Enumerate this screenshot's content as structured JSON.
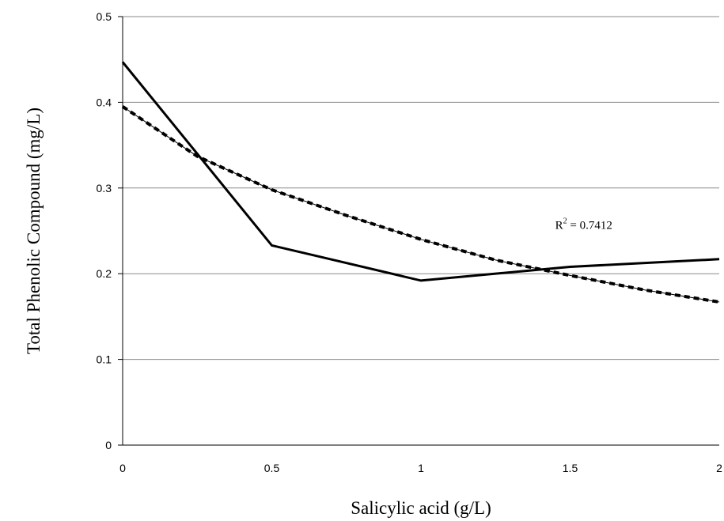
{
  "chart_data": {
    "type": "line",
    "title": "",
    "xlabel": "Salicylic acid (g/L)",
    "ylabel": "Total Phenolic Compound (mg/L)",
    "xlim": [
      0,
      2
    ],
    "ylim": [
      0,
      0.5
    ],
    "x_ticks": [
      "0",
      "0.5",
      "1",
      "1.5",
      "2"
    ],
    "y_ticks": [
      "0",
      "0.1",
      "0.2",
      "0.3",
      "0.4",
      "0.5"
    ],
    "grid": "horizontal",
    "legend": "none",
    "series": [
      {
        "style": "solid",
        "color": "#000000",
        "x": [
          0,
          0.5,
          1,
          1.5,
          2
        ],
        "y": [
          0.447,
          0.233,
          0.192,
          0.208,
          0.217
        ]
      },
      {
        "style": "dashed-trendline",
        "color": "#000000",
        "x": [
          0,
          0.25,
          0.5,
          0.75,
          1,
          1.25,
          1.5,
          1.75,
          2
        ],
        "y": [
          0.395,
          0.337,
          0.298,
          0.268,
          0.24,
          0.216,
          0.198,
          0.181,
          0.167
        ]
      }
    ],
    "annotations": [
      {
        "base": "R",
        "sup": "2",
        "text": " = 0.7412",
        "x": 1.45,
        "y": 0.257
      }
    ]
  }
}
